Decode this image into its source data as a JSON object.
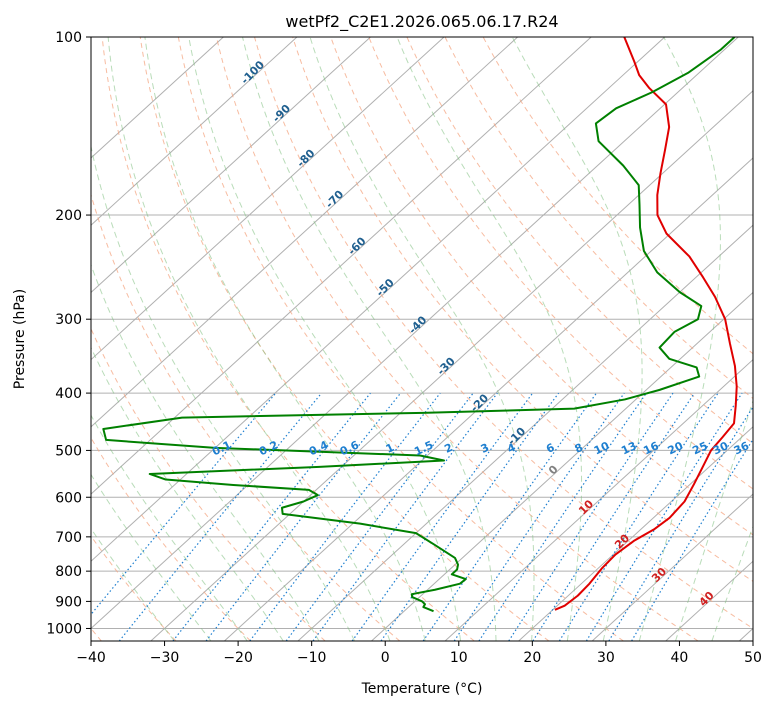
{
  "chart_data": {
    "type": "line",
    "title": "wetPf2_C2E1.2026.065.06.17.R24",
    "xlabel": "Temperature (°C)",
    "ylabel": "Pressure (hPa)",
    "xlim": [
      -40,
      50
    ],
    "ylim": [
      1050,
      100
    ],
    "x_ticks": [
      -40,
      -30,
      -20,
      -10,
      0,
      10,
      20,
      30,
      40,
      50
    ],
    "x_tick_labels": [
      "−40",
      "−30",
      "−20",
      "−10",
      "0",
      "10",
      "20",
      "30",
      "40",
      "50"
    ],
    "y_ticks": [
      100,
      200,
      300,
      400,
      500,
      600,
      700,
      800,
      900,
      1000
    ],
    "y_tick_labels": [
      "100",
      "200",
      "300",
      "400",
      "500",
      "600",
      "700",
      "800",
      "900",
      "1000"
    ],
    "skew_deg_per_log_decade": 88,
    "isotherms_c": [
      -110,
      -100,
      -90,
      -80,
      -70,
      -60,
      -50,
      -40,
      -30,
      -20,
      -10,
      0,
      10,
      20,
      30,
      40,
      50
    ],
    "dry_adiabats_c": [
      -100,
      -90,
      -80,
      -70,
      -60,
      -50,
      -40,
      -30,
      -20,
      -10,
      0,
      10,
      20,
      30,
      40,
      50,
      60,
      70,
      80,
      90,
      100,
      110
    ],
    "dry_adiabat_labels": [
      {
        "text": "-100",
        "p": 116,
        "t": -100
      },
      {
        "text": "-90",
        "p": 136,
        "t": -90
      },
      {
        "text": "-80",
        "p": 162,
        "t": -80
      },
      {
        "text": "-70",
        "p": 190,
        "t": -70
      },
      {
        "text": "-60",
        "p": 228,
        "t": -60
      },
      {
        "text": "-50",
        "p": 268,
        "t": -50
      },
      {
        "text": "-40",
        "p": 310,
        "t": -40
      },
      {
        "text": "-30",
        "p": 364,
        "t": -30
      },
      {
        "text": "-20",
        "p": 420,
        "t": -20
      },
      {
        "text": "-10",
        "p": 478,
        "t": -10
      }
    ],
    "moist_adiabat_labels": [
      {
        "text": "0",
        "p": 545,
        "t": 0
      },
      {
        "text": "10",
        "p": 630,
        "t": 10
      },
      {
        "text": "20",
        "p": 720,
        "t": 20
      },
      {
        "text": "30",
        "p": 820,
        "t": 30
      },
      {
        "text": "40",
        "p": 900,
        "t": 40
      }
    ],
    "mixing_ratios_gkg": [
      0.1,
      0.2,
      0.4,
      0.6,
      1,
      1.5,
      2,
      3,
      4,
      6,
      8,
      10,
      13,
      16,
      20,
      25,
      30,
      36
    ],
    "mixing_ratio_labels": [
      "0.1",
      "0.2",
      "0.4",
      "0.6",
      "1",
      "1.5",
      "2",
      "3",
      "4",
      "6",
      "8",
      "10",
      "13",
      "16",
      "20",
      "25",
      "30",
      "36"
    ],
    "series": [
      {
        "name": "Temperature",
        "color": "#e00000",
        "points": [
          [
            930,
            20.3
          ],
          [
            915,
            21.0
          ],
          [
            880,
            21.3
          ],
          [
            840,
            21.1
          ],
          [
            790,
            20.5
          ],
          [
            750,
            20.3
          ],
          [
            710,
            20.8
          ],
          [
            680,
            21.8
          ],
          [
            650,
            22.2
          ],
          [
            610,
            21.8
          ],
          [
            570,
            20.5
          ],
          [
            535,
            19.2
          ],
          [
            500,
            17.8
          ],
          [
            475,
            17.4
          ],
          [
            450,
            16.9
          ],
          [
            420,
            14.5
          ],
          [
            390,
            11.8
          ],
          [
            360,
            8.5
          ],
          [
            330,
            4.5
          ],
          [
            300,
            0.2
          ],
          [
            275,
            -4.5
          ],
          [
            255,
            -9.0
          ],
          [
            235,
            -14.0
          ],
          [
            215,
            -20.5
          ],
          [
            200,
            -24.5
          ],
          [
            185,
            -27.5
          ],
          [
            170,
            -30.3
          ],
          [
            155,
            -33.2
          ],
          [
            142,
            -36.0
          ],
          [
            130,
            -39.8
          ],
          [
            122,
            -44.5
          ],
          [
            116,
            -47.8
          ],
          [
            110,
            -50.5
          ],
          [
            100,
            -55.5
          ]
        ]
      },
      {
        "name": "Dewpoint",
        "color": "#008000",
        "points": [
          [
            935,
            4.0
          ],
          [
            920,
            2.0
          ],
          [
            910,
            1.8
          ],
          [
            900,
            1.0
          ],
          [
            885,
            -1.0
          ],
          [
            875,
            -1.5
          ],
          [
            860,
            1.0
          ],
          [
            840,
            3.5
          ],
          [
            825,
            3.6
          ],
          [
            810,
            1.0
          ],
          [
            795,
            1.0
          ],
          [
            780,
            0.4
          ],
          [
            760,
            -1.0
          ],
          [
            720,
            -6.0
          ],
          [
            690,
            -10.0
          ],
          [
            665,
            -19.0
          ],
          [
            640,
            -31.0
          ],
          [
            625,
            -32.0
          ],
          [
            610,
            -30.0
          ],
          [
            595,
            -29.0
          ],
          [
            583,
            -31.0
          ],
          [
            572,
            -42.0
          ],
          [
            560,
            -52.0
          ],
          [
            548,
            -55.0
          ],
          [
            533,
            -33.0
          ],
          [
            520,
            -17.0
          ],
          [
            510,
            -21.0
          ],
          [
            495,
            -50.0
          ],
          [
            480,
            -66.0
          ],
          [
            460,
            -68.0
          ],
          [
            440,
            -59.0
          ],
          [
            432,
            -27.0
          ],
          [
            425,
            -7.0
          ],
          [
            410,
            -1.5
          ],
          [
            395,
            1.8
          ],
          [
            375,
            5.2
          ],
          [
            362,
            3.5
          ],
          [
            350,
            -1.5
          ],
          [
            335,
            -4.5
          ],
          [
            315,
            -4.8
          ],
          [
            300,
            -3.5
          ],
          [
            285,
            -5.0
          ],
          [
            270,
            -10.0
          ],
          [
            250,
            -16.0
          ],
          [
            230,
            -21.0
          ],
          [
            210,
            -25.0
          ],
          [
            192,
            -28.5
          ],
          [
            178,
            -31.5
          ],
          [
            165,
            -36.5
          ],
          [
            150,
            -43.5
          ],
          [
            140,
            -46.5
          ],
          [
            132,
            -46.0
          ],
          [
            124,
            -43.5
          ],
          [
            115,
            -41.5
          ],
          [
            105,
            -40.5
          ],
          [
            100,
            -40.5
          ]
        ]
      }
    ]
  }
}
